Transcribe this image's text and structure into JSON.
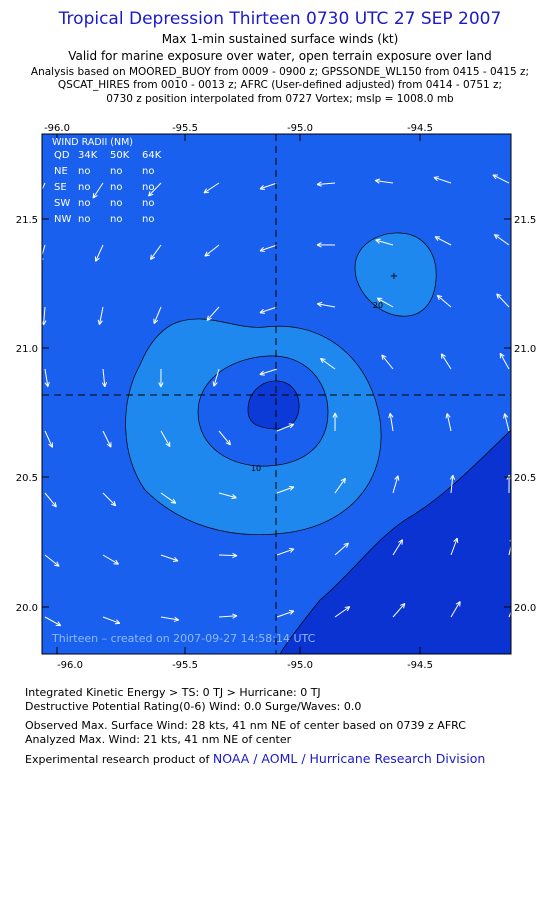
{
  "header": {
    "title": "Tropical Depression Thirteen 0730 UTC 27 SEP 2007",
    "subtitle1": "Max 1-min sustained surface winds (kt)",
    "subtitle2": "Valid for marine exposure over water, open terrain exposure over land",
    "analysis_line1": "Analysis based on  MOORED_BUOY from 0009 - 0900 z;  GPSSONDE_WL150 from 0415 - 0415 z;",
    "analysis_line2": "QSCAT_HIRES from 0010 - 0013 z;  AFRC (User-defined adjusted) from 0414 - 0751 z;",
    "analysis_line3": "0730 z position interpolated from 0727 Vortex; mslp = 1008.0 mb"
  },
  "map": {
    "lon_ticks": [
      "-96.0",
      "-95.5",
      "-95.0",
      "-94.5"
    ],
    "lat_ticks": [
      "21.5",
      "21.0",
      "20.5",
      "20.0"
    ],
    "contour_labels": [
      "10",
      "20"
    ],
    "credit": "Thirteen  –  created on 2007-09-27 14:58:14 UTC",
    "center": {
      "lon": -95.1,
      "lat": 20.82
    },
    "wind_radii": {
      "title": "WIND RADII (NM)",
      "header": [
        "QD",
        "34K",
        "50K",
        "64K"
      ],
      "rows": [
        [
          "NE",
          "no",
          "no",
          "no"
        ],
        [
          "SE",
          "no",
          "no",
          "no"
        ],
        [
          "SW",
          "no",
          "no",
          "no"
        ],
        [
          "NW",
          "no",
          "no",
          "no"
        ]
      ]
    },
    "colors": {
      "level_0_10": "#1a60ef",
      "level_10_20": "#1e88ee",
      "level_20_plus": "#0b3ad6",
      "outer_se": "#0a33d2"
    }
  },
  "footer": {
    "ike_line": "Integrated Kinetic Energy > TS: 0 TJ   > Hurricane: 0 TJ",
    "dpr_line": "Destructive Potential Rating(0-6)   Wind: 0.0 Surge/Waves: 0.0",
    "obs_line": "Observed Max. Surface Wind: 28 kts, 41 nm NE of center based on 0739 z AFRC",
    "ana_line": "Analyzed Max. Wind: 21 kts, 41 nm NE of center",
    "product_prefix": "Experimental research product of",
    "product_link": "NOAA / AOML / Hurricane Research Division"
  }
}
